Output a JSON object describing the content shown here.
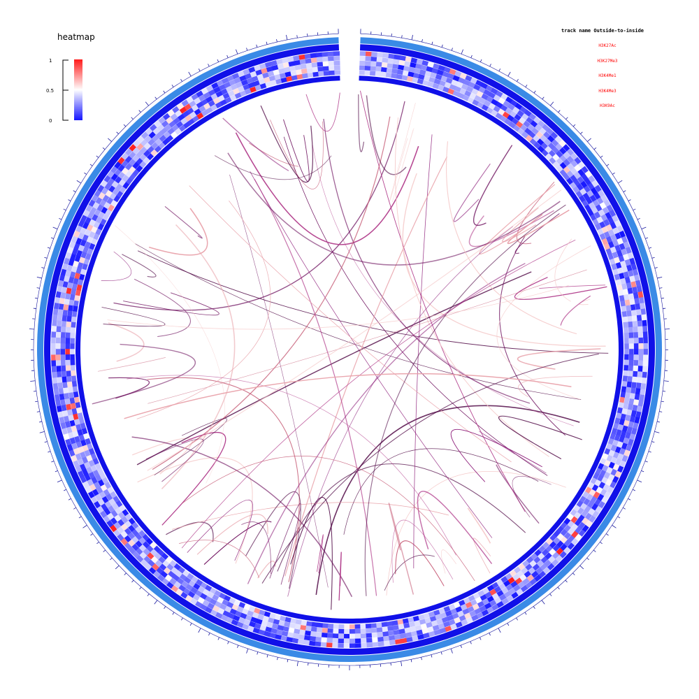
{
  "chart_data": {
    "type": "circos",
    "legend": {
      "title": "heatmap",
      "ticks": [
        "1",
        "0.5",
        "0"
      ],
      "color_low": "#1515ff",
      "color_mid": "#ffffff",
      "color_high": "#ff1a1a"
    },
    "track_list": {
      "header": "track name Outside-to-inside",
      "names": [
        "H3K27Ac",
        "H3K27Me3",
        "H3K4Me1",
        "H3K4Me3",
        "H3K9Ac"
      ],
      "name_color": "#ff0000"
    },
    "colors": {
      "tick": "#1a1aa0",
      "outer_band": "#3a8ae6",
      "inner_band": "#1010e8",
      "links": [
        "#4b0040",
        "#6a0a5a",
        "#8b1a78",
        "#b03a8a",
        "#c8607a",
        "#e8a0a8",
        "#f5c8c8"
      ]
    },
    "axis_range": [
      0,
      1
    ],
    "heatmap_ring_count": 5,
    "link_count": 110
  }
}
